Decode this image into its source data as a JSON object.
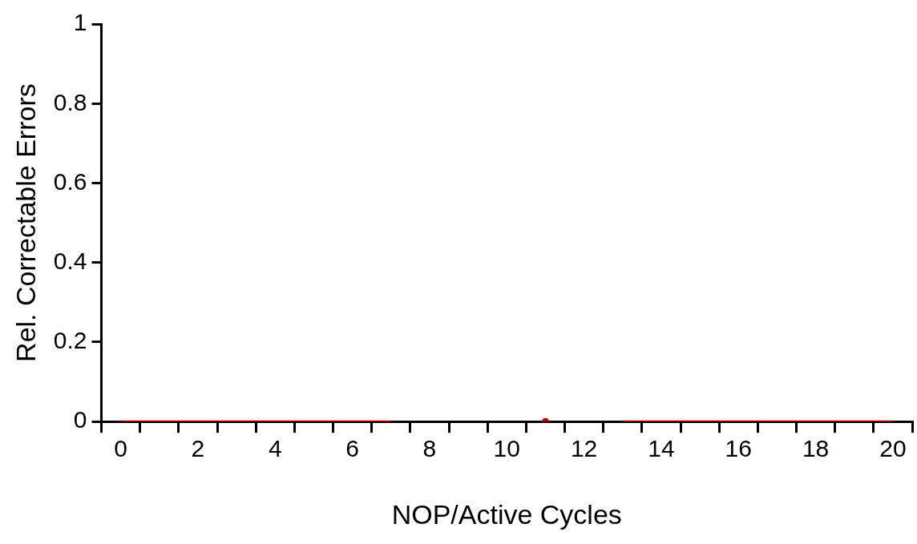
{
  "chart_data": {
    "type": "line",
    "xlabel": "NOP/Active Cycles",
    "ylabel": "Rel. Correctable Errors",
    "categories": [
      "0",
      null,
      "2",
      null,
      "4",
      null,
      "6",
      null,
      "8",
      null,
      "10",
      null,
      "12",
      null,
      "14",
      null,
      "16",
      null,
      "18",
      null,
      "20"
    ],
    "series": [
      {
        "color": "#c00000",
        "values": [
          0,
          0,
          0,
          0,
          0,
          0,
          0,
          0,
          null,
          null,
          null,
          0,
          null,
          0,
          0,
          0,
          0,
          0,
          0,
          0,
          0
        ]
      }
    ],
    "ylim": [
      0,
      1
    ],
    "yticks": [
      0,
      0.2,
      0.4,
      0.6,
      0.8,
      1
    ],
    "grid": false,
    "legend": false,
    "marker": "none",
    "line_style": "solid"
  }
}
